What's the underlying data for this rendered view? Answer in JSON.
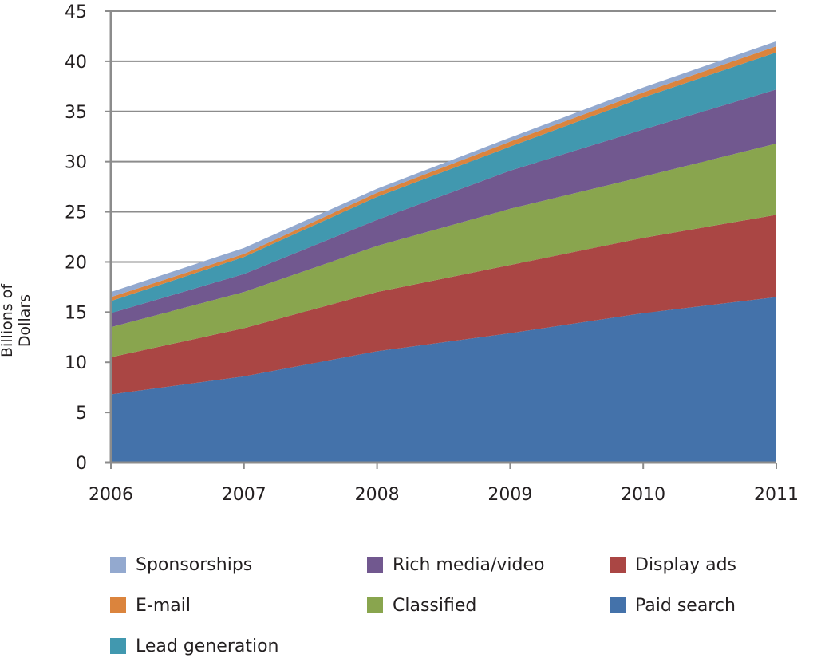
{
  "chart_data": {
    "type": "area",
    "stacked": true,
    "title": "",
    "xlabel": "",
    "ylabel": "Billions of Dollars",
    "ylim": [
      0,
      45
    ],
    "yticks": [
      0,
      5,
      10,
      15,
      20,
      25,
      30,
      35,
      40,
      45
    ],
    "grid": true,
    "legend_position": "bottom",
    "categories": [
      "2006",
      "2007",
      "2008",
      "2009",
      "2010",
      "2011"
    ],
    "series": [
      {
        "name": "Paid search",
        "color": "#4472aa",
        "values": [
          6.8,
          8.6,
          11.1,
          12.9,
          14.9,
          16.5
        ]
      },
      {
        "name": "Display ads",
        "color": "#aa4644",
        "values": [
          3.7,
          4.8,
          5.9,
          6.8,
          7.5,
          8.2
        ]
      },
      {
        "name": "Classified",
        "color": "#89a54e",
        "values": [
          3.0,
          3.6,
          4.6,
          5.6,
          6.1,
          7.1
        ]
      },
      {
        "name": "Rich media/video",
        "color": "#71588f",
        "values": [
          1.4,
          1.8,
          2.6,
          3.8,
          4.7,
          5.4
        ]
      },
      {
        "name": "Lead generation",
        "color": "#4198af",
        "values": [
          1.2,
          1.7,
          2.3,
          2.4,
          3.2,
          3.7
        ]
      },
      {
        "name": "E-mail",
        "color": "#db843d",
        "values": [
          0.4,
          0.3,
          0.4,
          0.5,
          0.5,
          0.6
        ]
      },
      {
        "name": "Sponsorships",
        "color": "#93a9cf",
        "values": [
          0.5,
          0.6,
          0.4,
          0.4,
          0.5,
          0.5
        ]
      }
    ]
  },
  "legend": [
    {
      "label": "Sponsorships",
      "color": "#93a9cf"
    },
    {
      "label": "Rich media/video",
      "color": "#71588f"
    },
    {
      "label": "Display ads",
      "color": "#aa4644"
    },
    {
      "label": "E-mail",
      "color": "#db843d"
    },
    {
      "label": "Classified",
      "color": "#89a54e"
    },
    {
      "label": "Paid search",
      "color": "#4472aa"
    },
    {
      "label": "Lead generation",
      "color": "#4198af"
    }
  ],
  "axis": {
    "ylabel": "Billions of Dollars"
  }
}
